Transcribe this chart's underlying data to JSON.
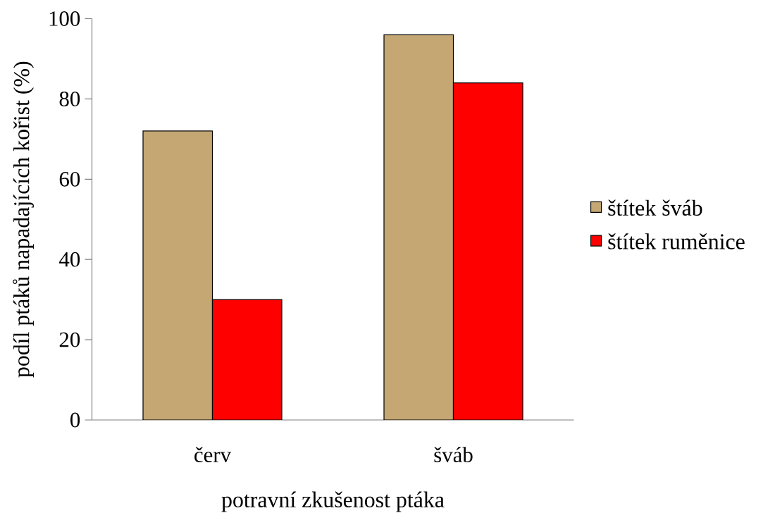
{
  "chart_data": {
    "type": "bar",
    "xlabel": "potravní zkušenost ptáka",
    "ylabel": "podíl ptáků napadajících kořist (%)",
    "categories": [
      "červ",
      "šváb"
    ],
    "series": [
      {
        "name": "štítek šváb",
        "color": "#c4a773",
        "values": [
          72,
          96
        ]
      },
      {
        "name": "štítek ruměnice",
        "color": "#ff0000",
        "values": [
          30,
          84
        ]
      }
    ],
    "ylim": [
      0,
      100
    ],
    "yticks": [
      0,
      20,
      40,
      60,
      80,
      100
    ],
    "legend": "right"
  }
}
